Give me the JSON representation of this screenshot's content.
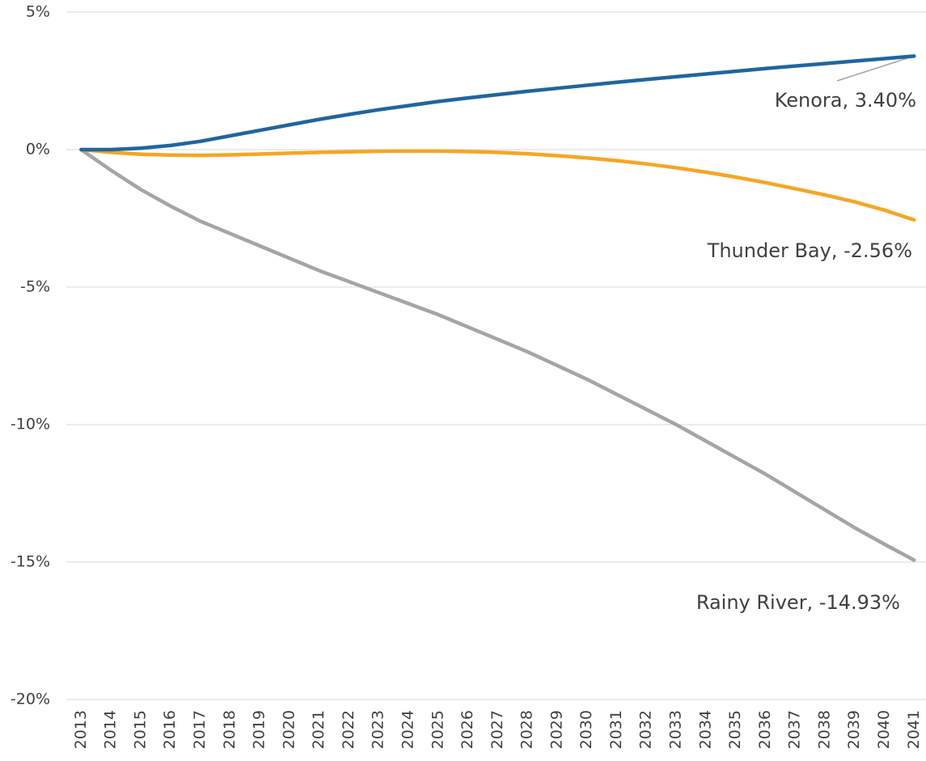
{
  "chart_data": {
    "type": "line",
    "x": [
      2013,
      2014,
      2015,
      2016,
      2017,
      2018,
      2019,
      2020,
      2021,
      2022,
      2023,
      2024,
      2025,
      2026,
      2027,
      2028,
      2029,
      2030,
      2031,
      2032,
      2033,
      2034,
      2035,
      2036,
      2037,
      2038,
      2039,
      2040,
      2041
    ],
    "series": [
      {
        "name": "Kenora",
        "color": "#1f66a0",
        "values": [
          0,
          0,
          0.05,
          0.15,
          0.3,
          0.5,
          0.7,
          0.9,
          1.1,
          1.28,
          1.45,
          1.6,
          1.75,
          1.88,
          2.0,
          2.12,
          2.23,
          2.34,
          2.45,
          2.55,
          2.65,
          2.75,
          2.85,
          2.95,
          3.04,
          3.13,
          3.22,
          3.31,
          3.4
        ]
      },
      {
        "name": "Thunder Bay",
        "color": "#f5a623",
        "values": [
          0,
          -0.1,
          -0.17,
          -0.2,
          -0.21,
          -0.19,
          -0.16,
          -0.13,
          -0.1,
          -0.08,
          -0.06,
          -0.05,
          -0.05,
          -0.07,
          -0.1,
          -0.15,
          -0.22,
          -0.3,
          -0.4,
          -0.52,
          -0.66,
          -0.82,
          -1.0,
          -1.2,
          -1.42,
          -1.65,
          -1.9,
          -2.2,
          -2.56
        ]
      },
      {
        "name": "Rainy River",
        "color": "#a5a5a5",
        "values": [
          0,
          -0.75,
          -1.45,
          -2.05,
          -2.6,
          -3.05,
          -3.5,
          -3.95,
          -4.4,
          -4.8,
          -5.2,
          -5.6,
          -6.0,
          -6.45,
          -6.9,
          -7.35,
          -7.85,
          -8.35,
          -8.9,
          -9.45,
          -10.0,
          -10.6,
          -11.2,
          -11.8,
          -12.45,
          -13.1,
          -13.75,
          -14.35,
          -14.93
        ]
      }
    ],
    "annotations": [
      "Kenora, 3.40%",
      "Thunder Bay, -2.56%",
      "Rainy River, -14.93%"
    ],
    "xlim": [
      2012.5,
      2041.4
    ],
    "xticks": [
      2013,
      2014,
      2015,
      2016,
      2017,
      2018,
      2019,
      2020,
      2021,
      2022,
      2023,
      2024,
      2025,
      2026,
      2027,
      2028,
      2029,
      2030,
      2031,
      2032,
      2033,
      2034,
      2035,
      2036,
      2037,
      2038,
      2039,
      2040,
      2041
    ],
    "ylim": [
      -20,
      5
    ],
    "yticks": [
      {
        "value": -20,
        "label": "-20%"
      },
      {
        "value": -15,
        "label": "-15%"
      },
      {
        "value": -10,
        "label": "-10%"
      },
      {
        "value": -5,
        "label": "-5%"
      },
      {
        "value": 0,
        "label": "0%"
      },
      {
        "value": 5,
        "label": "5%"
      }
    ],
    "grid": true
  }
}
